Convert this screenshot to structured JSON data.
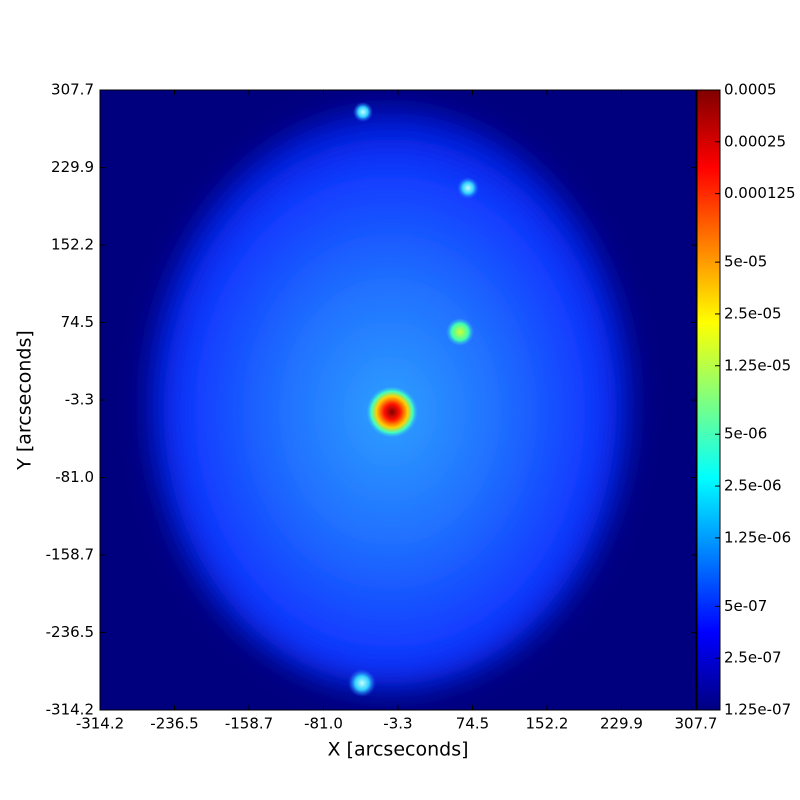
{
  "chart_data": {
    "type": "heatmap",
    "x_label": "X [arcseconds]",
    "y_label": "Y [arcseconds]",
    "xlim": [
      -314.2,
      307.7
    ],
    "ylim": [
      -314.2,
      307.7
    ],
    "xticks": [
      -314.2,
      -236.5,
      -158.7,
      {
        "value": -81.0,
        "label": "-81.0"
      },
      -3.3,
      74.5,
      152.2,
      229.9,
      307.7
    ],
    "yticks": [
      -314.2,
      -236.5,
      -158.7,
      {
        "value": -81.0,
        "label": "-81.0"
      },
      -3.3,
      74.5,
      152.2,
      229.9,
      307.7
    ],
    "colormap": "jet",
    "color_log_scale": true,
    "clim": [
      1.25e-07,
      0.0005
    ],
    "cticks": [
      {
        "value": 1.25e-07,
        "label": "1.25e-07"
      },
      {
        "value": 2.5e-07,
        "label": "2.5e-07"
      },
      {
        "value": 5e-07,
        "label": "5e-07"
      },
      {
        "value": 1.25e-06,
        "label": "1.25e-06"
      },
      {
        "value": 2.5e-06,
        "label": "2.5e-06"
      },
      {
        "value": 5e-06,
        "label": "5e-06"
      },
      {
        "value": 1.25e-05,
        "label": "1.25e-05"
      },
      {
        "value": 2.5e-05,
        "label": "2.5e-05"
      },
      {
        "value": 5e-05,
        "label": "5e-05"
      },
      0.000125,
      0.00025,
      0.0005
    ]
  }
}
